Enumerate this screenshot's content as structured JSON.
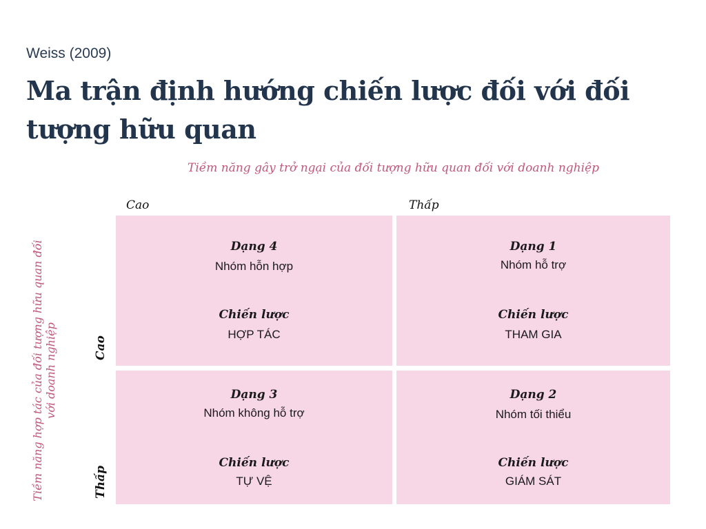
{
  "header": {
    "subtitle": "Weiss (2009)",
    "title": "Ma trận định hướng chiến lược đối với đối tượng hữu quan"
  },
  "axes": {
    "top": "Tiềm năng gây trở ngại của đối tượng hữu quan đối với doanh nghiệp",
    "left": "Tiềm năng hợp tác của đối tượng hữu quan đối với doanh nghiệp",
    "columns": [
      "Cao",
      "Thấp"
    ],
    "rows": [
      "Cao",
      "Thấp"
    ]
  },
  "cells": [
    {
      "type": "Dạng 4",
      "group": "Nhóm hỗn hợp",
      "strategy_label": "Chiến lược",
      "strategy": "HỢP TÁC"
    },
    {
      "type": "Dạng 1",
      "group": "Nhóm hỗ trợ",
      "strategy_label": "Chiến lược",
      "strategy": "THAM GIA"
    },
    {
      "type": "Dạng 3",
      "group": "Nhóm không hỗ trợ",
      "strategy_label": "Chiến lược",
      "strategy": "TỰ VỆ"
    },
    {
      "type": "Dạng 2",
      "group": "Nhóm tối thiểu",
      "strategy_label": "Chiến lược",
      "strategy": "GIÁM SÁT"
    }
  ],
  "colors": {
    "cell_fill": "#f7d6e6",
    "axis_text": "#c0577c",
    "title_text": "#22354d"
  }
}
